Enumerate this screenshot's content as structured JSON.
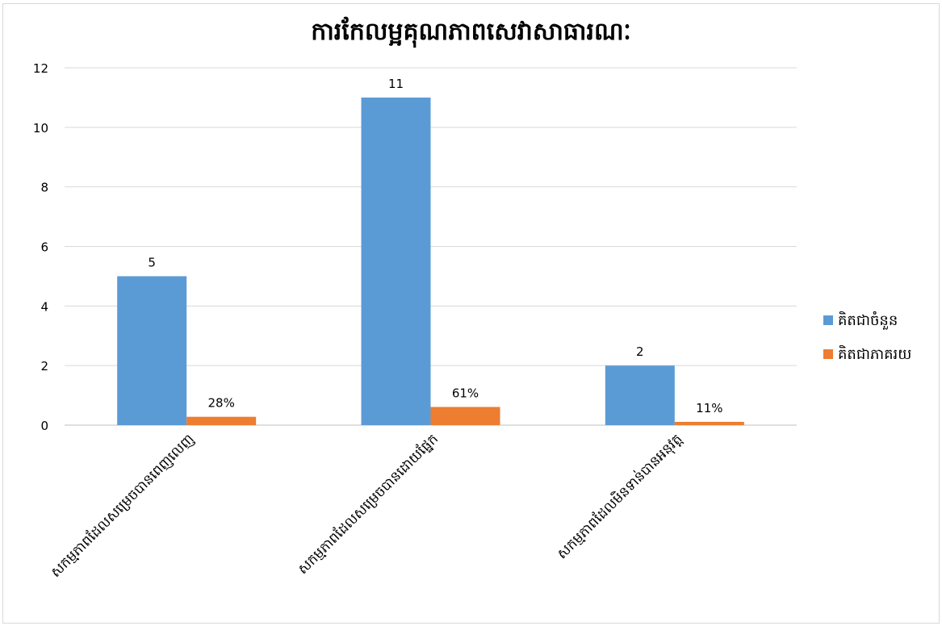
{
  "chart_data": {
    "type": "bar",
    "title": "ការកែលម្អគុណភាពសេវាសាធារណៈ",
    "categories": [
      "សកម្មភាពដែលសម្រេចបានពេញលេញ",
      "សកម្មភាពដែលសម្រេចបានដោយផ្នែក",
      "សកម្មភាពដែលមិនទាន់បានអនុវត្ត"
    ],
    "series": [
      {
        "name": "គិតជាចំនួន",
        "values": [
          5,
          11,
          2
        ],
        "labels": [
          "5",
          "11",
          "2"
        ],
        "color": "#5b9bd5"
      },
      {
        "name": "គិតជាភាគរយ",
        "values": [
          0.28,
          0.61,
          0.11
        ],
        "labels": [
          "28%",
          "61%",
          "11%"
        ],
        "color": "#ed7d31"
      }
    ],
    "yticks": [
      "0",
      "2",
      "4",
      "6",
      "8",
      "10",
      "12"
    ],
    "ylim": [
      0,
      12
    ],
    "grid": true,
    "legend_position": "right"
  }
}
